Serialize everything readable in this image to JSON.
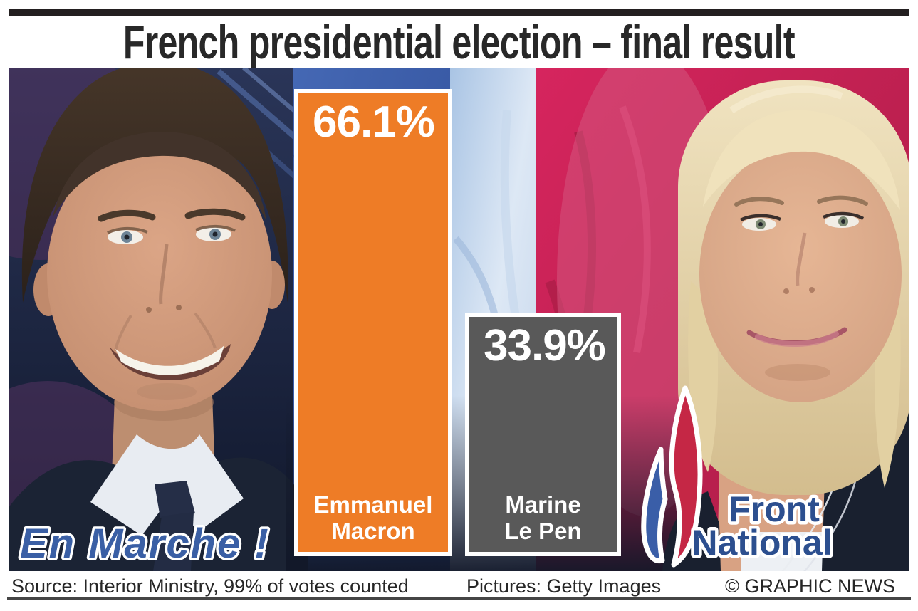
{
  "title": "French presidential election – final result",
  "chart_data": {
    "type": "bar",
    "categories": [
      "Emmanuel Macron",
      "Marine Le Pen"
    ],
    "values": [
      66.1,
      33.9
    ],
    "value_labels": [
      "66.1%",
      "33.9%"
    ],
    "bar_colors": [
      "#ee7c26",
      "#595959"
    ],
    "ylim": [
      0,
      70
    ],
    "grid": false,
    "legend": false,
    "orientation": "vertical",
    "annotations": [
      "En Marche !",
      "Front National"
    ]
  },
  "bars": [
    {
      "candidate": "Emmanuel Macron",
      "name_line1": "Emmanuel",
      "name_line2": "Macron",
      "value_label": "66.1%",
      "party": "En Marche !"
    },
    {
      "candidate": "Marine Le Pen",
      "name_line1": "Marine",
      "name_line2": "Le Pen",
      "value_label": "33.9%",
      "party": "Front National"
    }
  ],
  "overlays": {
    "en_marche": "En Marche !",
    "front_national_line1": "Front",
    "front_national_line2": "National"
  },
  "footer": {
    "source": "Source: Interior Ministry, 99% of votes counted",
    "pictures": "Pictures: Getty Images",
    "copyright": "© GRAPHIC NEWS"
  },
  "colors": {
    "macron_orange": "#ee7c26",
    "lepen_gray": "#595959",
    "en_marche_blue": "#3a5fa5",
    "front_national_blue": "#2c4f8f",
    "flame_red": "#c52745",
    "flame_blue": "#3a5ea8",
    "flag_blue": "#3d62b0",
    "flag_red": "#c82453",
    "title_black": "#282828"
  }
}
